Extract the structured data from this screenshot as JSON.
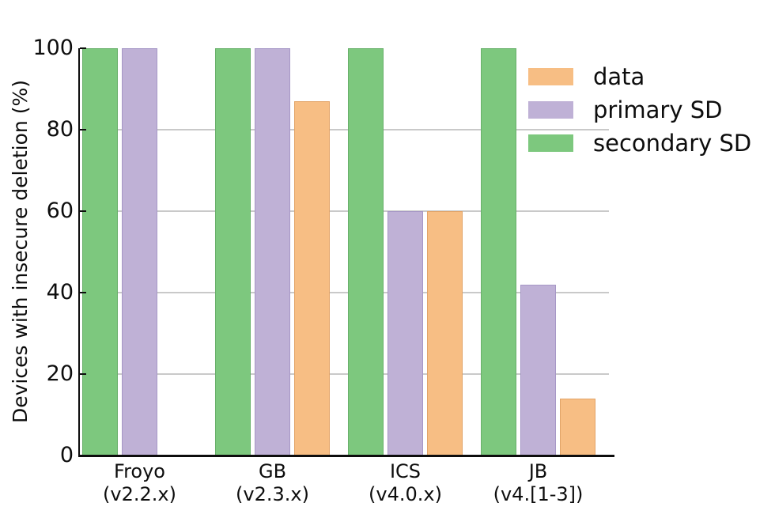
{
  "chart_data": {
    "type": "bar",
    "title": "",
    "xlabel": "",
    "ylabel": "Devices with insecure deletion (%)",
    "ylim": [
      0,
      100
    ],
    "yticks": [
      0,
      20,
      40,
      60,
      80,
      100
    ],
    "grid_values": [
      20,
      40,
      60,
      80
    ],
    "grid": "horizontal",
    "legend_position": "upper right",
    "categories": [
      {
        "label": "Froyo",
        "sublabel": "(v2.2.x)"
      },
      {
        "label": "GB",
        "sublabel": "(v2.3.x)"
      },
      {
        "label": "ICS",
        "sublabel": "(v4.0.x)"
      },
      {
        "label": "JB",
        "sublabel": "(v4.[1-3])"
      }
    ],
    "series": [
      {
        "name": "secondary SD",
        "color": "#7dc87e",
        "edge": "#68b06a",
        "values": [
          100,
          100,
          100,
          100
        ]
      },
      {
        "name": "primary SD",
        "color": "#bfb1d6",
        "edge": "#a697c6",
        "values": [
          100,
          100,
          60,
          42
        ]
      },
      {
        "name": "data",
        "color": "#f7be84",
        "edge": "#e2a468",
        "values": [
          null,
          87,
          60,
          14
        ]
      }
    ],
    "legend_order": [
      "data",
      "primary SD",
      "secondary SD"
    ],
    "colors": {
      "background": "#ffffff",
      "axis": "#0d0d0d",
      "grid": "#c9c9c9"
    }
  }
}
